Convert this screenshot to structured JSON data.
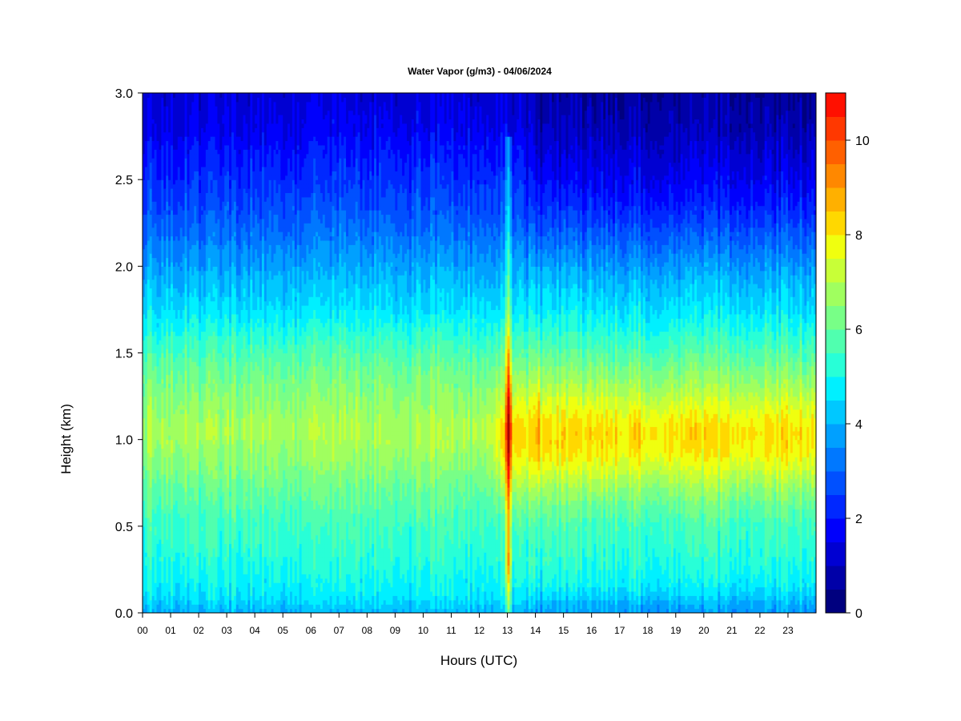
{
  "chart_data": {
    "type": "heatmap",
    "title": "Water Vapor (g/m3) - 04/06/2024",
    "xlabel": "Hours (UTC)",
    "ylabel": "Height (km)",
    "x_ticks": [
      "00",
      "01",
      "02",
      "03",
      "04",
      "05",
      "06",
      "07",
      "08",
      "09",
      "10",
      "11",
      "12",
      "13",
      "14",
      "15",
      "16",
      "17",
      "18",
      "19",
      "20",
      "21",
      "22",
      "23"
    ],
    "xlim": [
      0,
      24
    ],
    "y_ticks": [
      "0.0",
      "0.5",
      "1.0",
      "1.5",
      "2.0",
      "2.5",
      "3.0"
    ],
    "ylim": [
      0,
      3.0
    ],
    "colorbar": {
      "range": [
        0,
        11
      ],
      "step": 0.5,
      "ticks": [
        "0",
        "2",
        "4",
        "6",
        "8",
        "10"
      ],
      "colors": [
        "#00007F",
        "#0000A8",
        "#0000D2",
        "#0000FC",
        "#0028FF",
        "#0050FF",
        "#0078FF",
        "#00A0FF",
        "#00C8FF",
        "#00F0FF",
        "#28FFD7",
        "#50FFAF",
        "#78FF87",
        "#A0FF5F",
        "#C8FF37",
        "#F0FF0F",
        "#FFD800",
        "#FFB000",
        "#FF8800",
        "#FF6000",
        "#FF3800",
        "#FF1000",
        "#D20000",
        "#A80000",
        "#7F0000"
      ]
    },
    "grid": false,
    "vertical_profile": {
      "heights_km": [
        0.0,
        0.1,
        0.3,
        0.5,
        0.7,
        0.9,
        1.05,
        1.2,
        1.4,
        1.55,
        1.75,
        2.0,
        2.3,
        2.6,
        2.8,
        3.0
      ],
      "typical_values": [
        4.0,
        4.7,
        5.2,
        5.5,
        6.0,
        6.6,
        6.9,
        6.6,
        6.1,
        5.5,
        4.6,
        3.8,
        2.8,
        2.1,
        1.6,
        1.3
      ]
    },
    "notable_features": [
      {
        "hour": 13.05,
        "description": "peak",
        "max_value": 10.8
      },
      {
        "hour_range": [
          14,
          24
        ],
        "height_km": 1.0,
        "max_value": 8.5
      }
    ]
  }
}
